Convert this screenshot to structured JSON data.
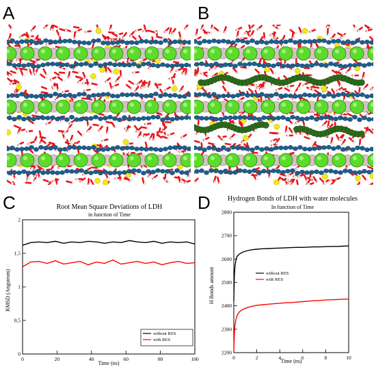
{
  "panels": {
    "a": "A",
    "b": "B",
    "c": "C",
    "d": "D"
  },
  "chart_data": [
    {
      "type": "line",
      "title": "Root Mean Square Deviations of LDH",
      "subtitle": "in function of Time",
      "xlabel": "Time (ns)",
      "ylabel": "RMSD (Angstrom)",
      "xlim": [
        0,
        100
      ],
      "ylim": [
        0,
        2
      ],
      "xticks": [
        "0",
        "20",
        "40",
        "60",
        "80",
        "100"
      ],
      "yticks": [
        "0",
        "0,5",
        "1",
        "1,5",
        "2"
      ],
      "grid": false,
      "legend": "bottom-right",
      "series": [
        {
          "name": "without RES",
          "color": "#000000",
          "values": [
            1.62,
            1.66,
            1.67,
            1.66,
            1.68,
            1.65,
            1.67,
            1.66,
            1.68,
            1.67,
            1.65,
            1.67,
            1.66,
            1.69,
            1.67,
            1.66,
            1.68,
            1.65,
            1.67,
            1.66,
            1.67,
            1.64
          ]
        },
        {
          "name": "with RES",
          "color": "#ff0000",
          "values": [
            1.3,
            1.37,
            1.38,
            1.35,
            1.39,
            1.34,
            1.36,
            1.38,
            1.33,
            1.37,
            1.35,
            1.4,
            1.34,
            1.36,
            1.38,
            1.35,
            1.37,
            1.33,
            1.36,
            1.38,
            1.35,
            1.36
          ]
        }
      ]
    },
    {
      "type": "line",
      "title": "Hydrogen Bonds of LDH with water molecules",
      "subtitle": "In function of Time",
      "xlabel": "Time (ns)",
      "ylabel": "H Bonds amount",
      "xlim": [
        0,
        10
      ],
      "ylim": [
        2200,
        2800
      ],
      "xticks": [
        "0",
        "2",
        "4",
        "6",
        "8",
        "10"
      ],
      "yticks": [
        "2200",
        "2300",
        "2400",
        "2500",
        "2600",
        "2700",
        "2800"
      ],
      "grid": false,
      "legend": "center-left",
      "series": [
        {
          "name": "without RES",
          "color": "#000000",
          "x": [
            0,
            0.05,
            0.1,
            0.2,
            0.3,
            0.5,
            0.8,
            1.2,
            1.6,
            2,
            2.5,
            3,
            3.5,
            4,
            4.5,
            5,
            5.5,
            6,
            6.5,
            7,
            7.5,
            8,
            8.5,
            9,
            9.5,
            10
          ],
          "values": [
            2420,
            2530,
            2570,
            2600,
            2612,
            2622,
            2630,
            2636,
            2640,
            2642,
            2644,
            2645,
            2646,
            2647,
            2648,
            2649,
            2650,
            2650,
            2651,
            2652,
            2652,
            2653,
            2654,
            2654,
            2655,
            2656
          ]
        },
        {
          "name": "with RES",
          "color": "#ff0000",
          "x": [
            0,
            0.05,
            0.1,
            0.2,
            0.3,
            0.5,
            0.8,
            1.2,
            1.6,
            2,
            2.5,
            3,
            3.5,
            4,
            4.5,
            5,
            5.5,
            6,
            6.5,
            7,
            7.5,
            8,
            8.5,
            9,
            9.5,
            10
          ],
          "values": [
            2200,
            2280,
            2320,
            2345,
            2360,
            2375,
            2385,
            2393,
            2398,
            2402,
            2405,
            2407,
            2409,
            2411,
            2413,
            2414,
            2416,
            2418,
            2420,
            2422,
            2423,
            2425,
            2426,
            2427,
            2428,
            2429
          ]
        }
      ]
    }
  ]
}
